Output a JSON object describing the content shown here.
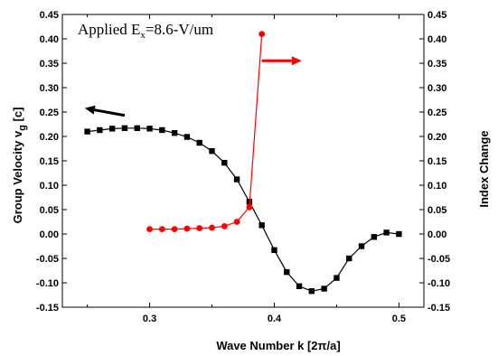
{
  "chart_data": {
    "type": "line",
    "annotation": {
      "prefix": "Applied E",
      "subscript": "x",
      "suffix": "=8.6-V/um"
    },
    "xlabel": "Wave Number k  [2π/a]",
    "ylabel_left": {
      "main": "Group Velocity  v",
      "subscript": "g",
      "unit": " [c]"
    },
    "ylabel_right": "Index Change",
    "xlim": [
      0.23,
      0.52
    ],
    "ylim": [
      -0.15,
      0.45
    ],
    "x_ticks": [
      "0.3",
      "0.4",
      "0.5"
    ],
    "x_tick_values": [
      0.3,
      0.4,
      0.5
    ],
    "y_ticks": [
      "-0.15",
      "-0.10",
      "-0.05",
      "0.00",
      "0.05",
      "0.10",
      "0.15",
      "0.20",
      "0.25",
      "0.30",
      "0.35",
      "0.40",
      "0.45"
    ],
    "y_tick_values": [
      -0.15,
      -0.1,
      -0.05,
      0.0,
      0.05,
      0.1,
      0.15,
      0.2,
      0.25,
      0.3,
      0.35,
      0.4,
      0.45
    ],
    "grid": false,
    "series": [
      {
        "axis": "left",
        "color": "#000000",
        "marker": "square",
        "x": [
          0.25,
          0.26,
          0.27,
          0.28,
          0.29,
          0.3,
          0.31,
          0.32,
          0.33,
          0.34,
          0.35,
          0.36,
          0.37,
          0.38,
          0.39,
          0.4,
          0.41,
          0.42,
          0.43,
          0.44,
          0.45,
          0.46,
          0.47,
          0.48,
          0.49,
          0.5
        ],
        "y": [
          0.21,
          0.213,
          0.216,
          0.217,
          0.217,
          0.216,
          0.213,
          0.207,
          0.199,
          0.187,
          0.17,
          0.146,
          0.112,
          0.066,
          0.018,
          -0.033,
          -0.078,
          -0.107,
          -0.117,
          -0.112,
          -0.09,
          -0.05,
          -0.025,
          -0.006,
          0.003,
          0.0
        ]
      },
      {
        "axis": "right",
        "color": "#ff0000",
        "marker": "circle",
        "x": [
          0.3,
          0.31,
          0.32,
          0.33,
          0.34,
          0.35,
          0.36,
          0.37,
          0.38,
          0.39
        ],
        "y": [
          0.01,
          0.01,
          0.01,
          0.011,
          0.012,
          0.013,
          0.016,
          0.025,
          0.055,
          0.41
        ]
      }
    ],
    "arrows": [
      {
        "color": "#000000",
        "direction": "left",
        "from": [
          0.28,
          0.243
        ],
        "to": [
          0.248,
          0.258
        ]
      },
      {
        "color": "#ff0000",
        "direction": "right",
        "from": [
          0.39,
          0.355
        ],
        "to": [
          0.422,
          0.355
        ]
      }
    ]
  }
}
